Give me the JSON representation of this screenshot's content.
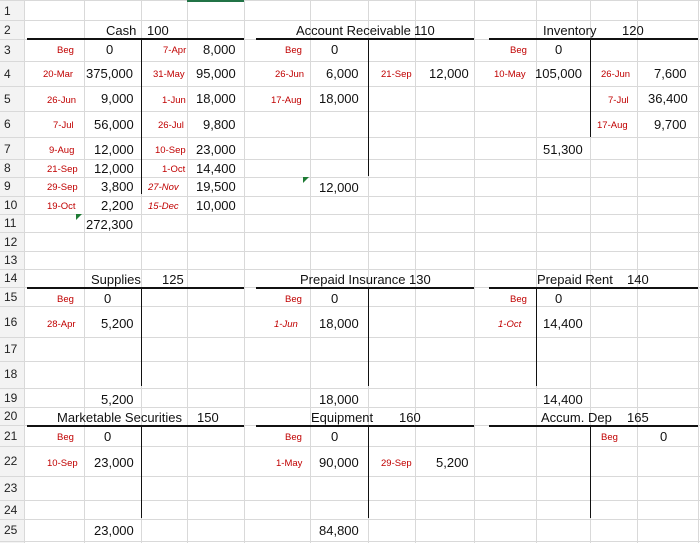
{
  "row_numbers": [
    "1",
    "2",
    "3",
    "4",
    "5",
    "6",
    "7",
    "8",
    "9",
    "10",
    "11",
    "12",
    "13",
    "14",
    "15",
    "16",
    "17",
    "18",
    "19",
    "20",
    "21",
    "22",
    "23",
    "24",
    "25"
  ],
  "accounts": {
    "cash": {
      "name": "Cash",
      "code": "100",
      "left": [
        {
          "label": "Beg",
          "value": "0"
        },
        {
          "label": "20-Mar",
          "value": "375,000"
        },
        {
          "label": "26-Jun",
          "value": "9,000"
        },
        {
          "label": "7-Jul",
          "value": "56,000"
        },
        {
          "label": "9-Aug",
          "value": "12,000"
        },
        {
          "label": "21-Sep",
          "value": "12,000"
        },
        {
          "label": "29-Sep",
          "value": "3,800"
        },
        {
          "label": "19-Oct",
          "value": "2,200"
        }
      ],
      "right": [
        {
          "label": "7-Apr",
          "value": "8,000"
        },
        {
          "label": "31-May",
          "value": "95,000"
        },
        {
          "label": "1-Jun",
          "value": "18,000"
        },
        {
          "label": "26-Jul",
          "value": "9,800"
        },
        {
          "label": "10-Sep",
          "value": "23,000"
        },
        {
          "label": "1-Oct",
          "value": "14,400"
        },
        {
          "label": "27-Nov",
          "value": "19,500"
        },
        {
          "label": "15-Dec",
          "value": "10,000"
        }
      ],
      "balance": "272,300"
    },
    "ar": {
      "name": "Account Receivable",
      "code": "110",
      "left": [
        {
          "label": "Beg",
          "value": "0"
        },
        {
          "label": "26-Jun",
          "value": "6,000"
        },
        {
          "label": "17-Aug",
          "value": "18,000"
        }
      ],
      "right": [
        {
          "label": "21-Sep",
          "value": "12,000"
        }
      ],
      "balance": "12,000"
    },
    "inventory": {
      "name": "Inventory",
      "code": "120",
      "left": [
        {
          "label": "Beg",
          "value": "0"
        },
        {
          "label": "10-May",
          "value": "105,000"
        }
      ],
      "right": [
        {
          "label": "26-Jun",
          "value": "7,600"
        },
        {
          "label": "7-Jul",
          "value": "36,400"
        },
        {
          "label": "17-Aug",
          "value": "9,700"
        }
      ],
      "balance": "51,300"
    },
    "supplies": {
      "name": "Supplies",
      "code": "125",
      "left": [
        {
          "label": "Beg",
          "value": "0"
        },
        {
          "label": "28-Apr",
          "value": "5,200"
        }
      ],
      "balance": "5,200"
    },
    "prepaid_insurance": {
      "name": "Prepaid Insurance",
      "code": "130",
      "left": [
        {
          "label": "Beg",
          "value": "0"
        },
        {
          "label": "1-Jun",
          "value": "18,000"
        }
      ],
      "balance": "18,000"
    },
    "prepaid_rent": {
      "name": "Prepaid Rent",
      "code": "140",
      "left": [
        {
          "label": "Beg",
          "value": "0"
        },
        {
          "label": "1-Oct",
          "value": "14,400"
        }
      ],
      "balance": "14,400"
    },
    "marketable_securities": {
      "name": "Marketable Securities",
      "code": "150",
      "left": [
        {
          "label": "Beg",
          "value": "0"
        },
        {
          "label": "10-Sep",
          "value": "23,000"
        }
      ],
      "balance": "23,000"
    },
    "equipment": {
      "name": "Equipment",
      "code": "160",
      "left": [
        {
          "label": "Beg",
          "value": "0"
        },
        {
          "label": "1-May",
          "value": "90,000"
        }
      ],
      "right": [
        {
          "label": "29-Sep",
          "value": "5,200"
        }
      ],
      "balance": "84,800"
    },
    "accum_dep": {
      "name": "Accum. Dep",
      "code": "165",
      "right": [
        {
          "label": "Beg",
          "value": "0"
        }
      ]
    }
  }
}
